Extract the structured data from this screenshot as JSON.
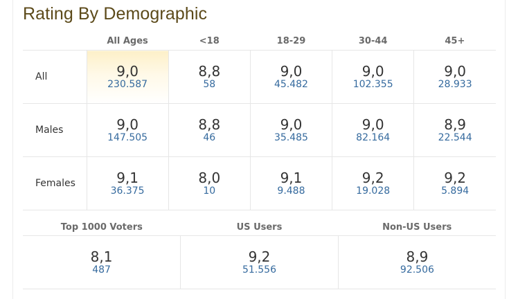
{
  "title": "Rating By Demographic",
  "columns": [
    "All Ages",
    "<18",
    "18-29",
    "30-44",
    "45+"
  ],
  "rows": [
    {
      "label": "All",
      "cells": [
        {
          "rating": "9,0",
          "votes": "230.587"
        },
        {
          "rating": "8,8",
          "votes": "58"
        },
        {
          "rating": "9,0",
          "votes": "45.482"
        },
        {
          "rating": "9,0",
          "votes": "102.355"
        },
        {
          "rating": "9,0",
          "votes": "28.933"
        }
      ]
    },
    {
      "label": "Males",
      "cells": [
        {
          "rating": "9,0",
          "votes": "147.505"
        },
        {
          "rating": "8,8",
          "votes": "46"
        },
        {
          "rating": "9,0",
          "votes": "35.485"
        },
        {
          "rating": "9,0",
          "votes": "82.164"
        },
        {
          "rating": "8,9",
          "votes": "22.544"
        }
      ]
    },
    {
      "label": "Females",
      "cells": [
        {
          "rating": "9,1",
          "votes": "36.375"
        },
        {
          "rating": "8,0",
          "votes": "10"
        },
        {
          "rating": "9,1",
          "votes": "9.488"
        },
        {
          "rating": "9,2",
          "votes": "19.028"
        },
        {
          "rating": "9,2",
          "votes": "5.894"
        }
      ]
    }
  ],
  "bottom": [
    {
      "label": "Top 1000 Voters",
      "rating": "8,1",
      "votes": "487"
    },
    {
      "label": "US Users",
      "rating": "9,2",
      "votes": "51.556"
    },
    {
      "label": "Non-US Users",
      "rating": "8,9",
      "votes": "92.506"
    }
  ],
  "colors": {
    "title": "#5c4a1a",
    "votes_link": "#356a9e",
    "highlight": "#fdf0c8"
  }
}
